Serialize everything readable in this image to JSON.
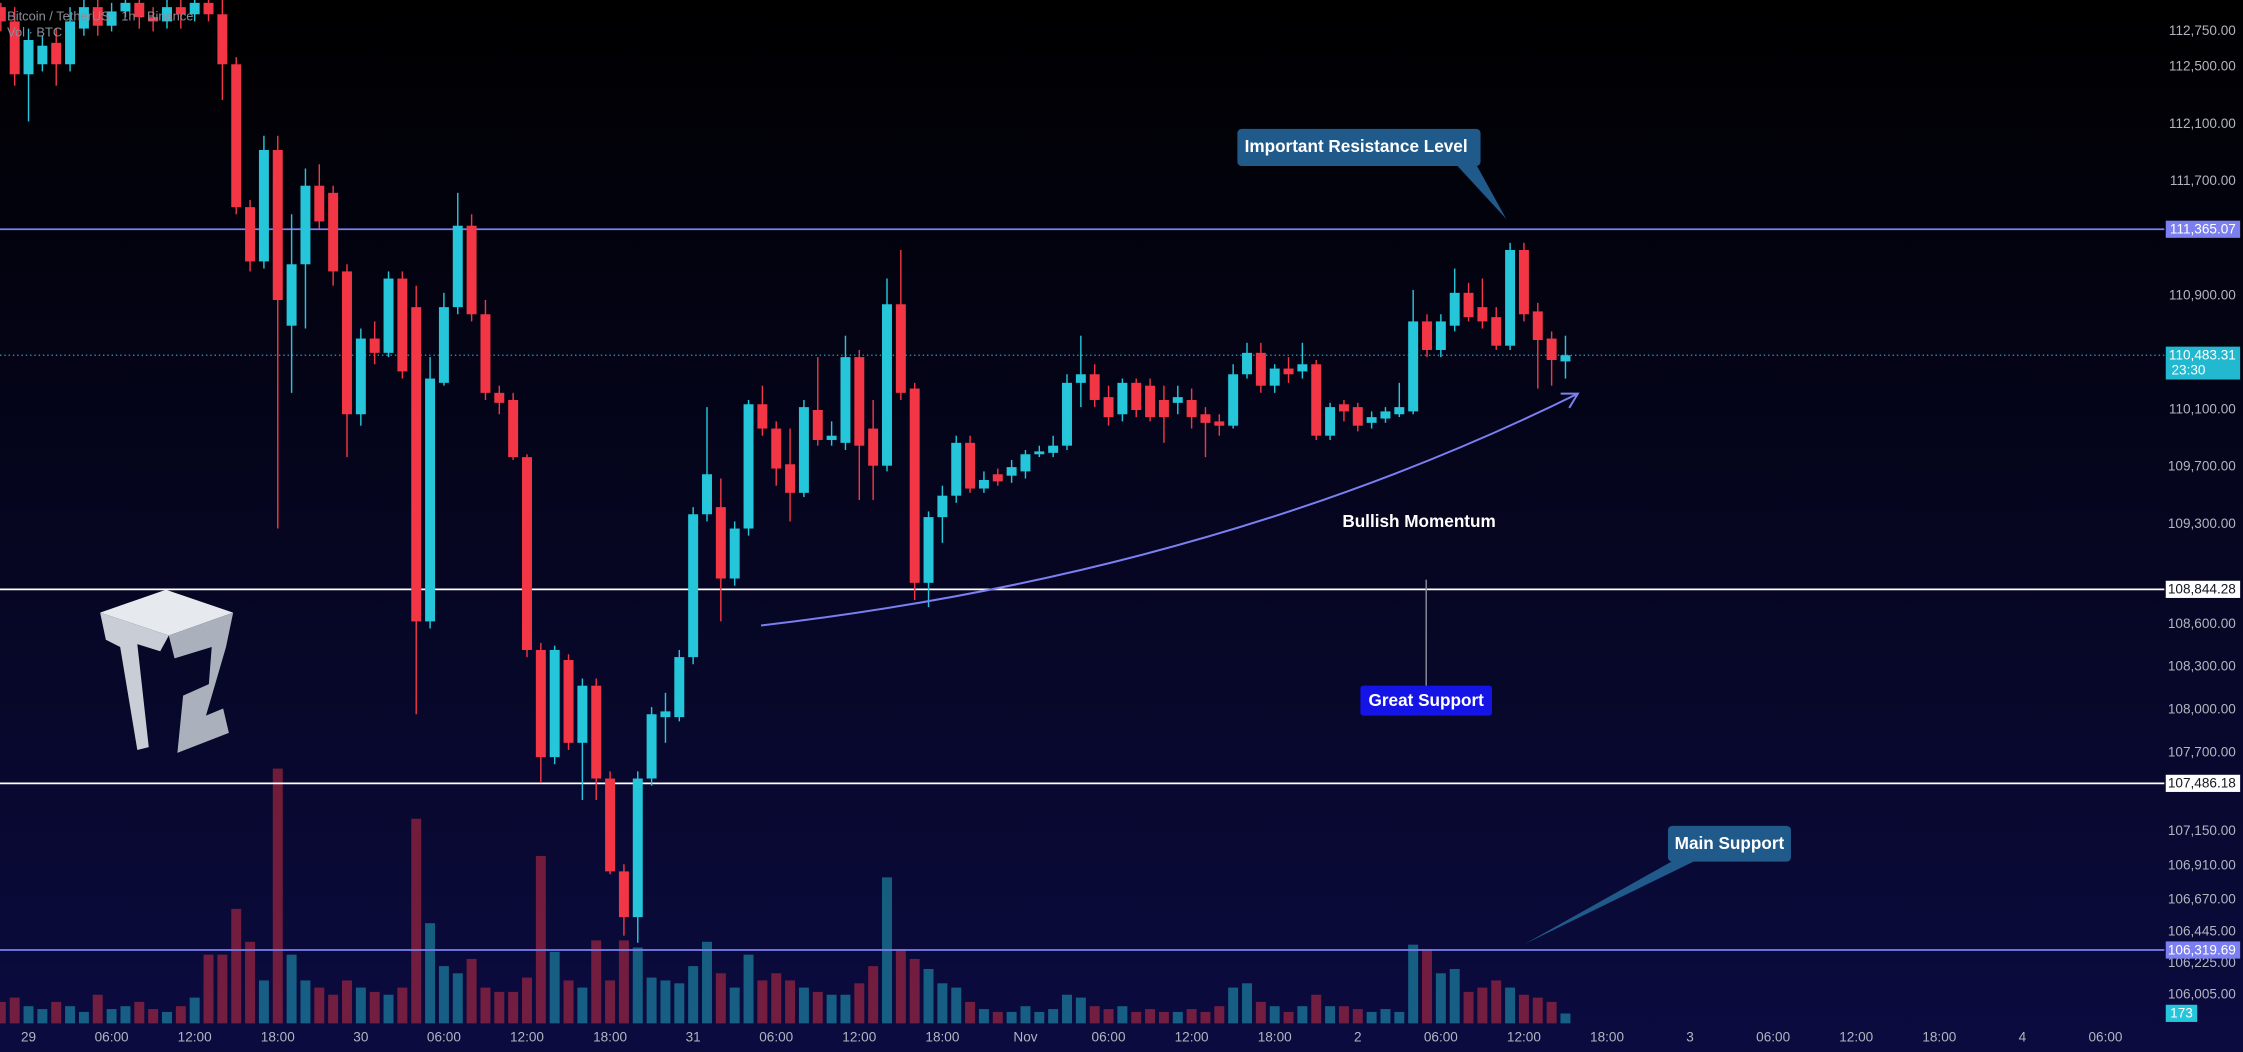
{
  "chart_data": {
    "type": "candlestick",
    "title": "Bitcoin / TetherUS · 1h · Binance",
    "subtitle": "Vol · BTC",
    "categories": [
      null,
      null,
      "29",
      null,
      null,
      null,
      null,
      null,
      "06:00",
      null,
      null,
      null,
      null,
      null,
      "12:00",
      null,
      null,
      null,
      null,
      null,
      "18:00",
      null,
      null,
      null,
      null,
      null,
      "30",
      null,
      null,
      null,
      null,
      null,
      "06:00",
      null,
      null,
      null,
      null,
      null,
      "12:00",
      null,
      null,
      null,
      null,
      null,
      "18:00",
      null,
      null,
      null,
      null,
      null,
      "31",
      null,
      null,
      null,
      null,
      null,
      "06:00",
      null,
      null,
      null,
      null,
      null,
      "12:00",
      null,
      null,
      null,
      null,
      null,
      "18:00",
      null,
      null,
      null,
      null,
      null,
      "Nov",
      null,
      null,
      null,
      null,
      null,
      "06:00",
      null,
      null,
      null,
      null,
      null,
      "12:00",
      null,
      null,
      null,
      null,
      null,
      "18:00",
      null,
      null,
      null,
      null,
      null,
      "2",
      null,
      null,
      null,
      null,
      null,
      "06:00",
      null,
      null,
      null,
      null,
      null,
      "12:00",
      null,
      null,
      null,
      null,
      null,
      "18:00",
      null,
      null,
      null,
      null,
      null,
      "3",
      null,
      null,
      null,
      null,
      null,
      "06:00",
      null,
      null,
      null,
      null,
      null,
      "12:00",
      null,
      null,
      null,
      null,
      null,
      "18:00",
      null,
      null,
      null,
      null,
      null,
      "4",
      null,
      null,
      null,
      null,
      null,
      "06:00",
      null,
      null,
      null
    ],
    "open": [
      112920,
      112820,
      112450,
      112520,
      112670,
      112520,
      112770,
      112920,
      112790,
      112890,
      112950,
      112850,
      112820,
      112920,
      112870,
      112950,
      112870,
      112520,
      111520,
      111140,
      111920,
      110690,
      111120,
      111670,
      111620,
      111070,
      110070,
      110600,
      110500,
      111020,
      110820,
      108620,
      110290,
      110820,
      111390,
      110770,
      110220,
      110170,
      109770,
      108420,
      107670,
      108350,
      107770,
      108170,
      107520,
      106870,
      106550,
      107520,
      107950,
      107950,
      108370,
      109370,
      109420,
      108920,
      109270,
      110140,
      109970,
      109720,
      109520,
      110100,
      109890,
      109870,
      110470,
      109970,
      109710,
      110840,
      110250,
      108890,
      109350,
      109500,
      109870,
      109550,
      109650,
      109640,
      109670,
      109790,
      109800,
      109850,
      110290,
      110350,
      110190,
      110070,
      110290,
      110270,
      110170,
      110150,
      110170,
      110070,
      110020,
      109990,
      110350,
      110500,
      110270,
      110390,
      110370,
      110420,
      109920,
      110140,
      110120,
      110010,
      110040,
      110070,
      110090,
      110720,
      110520,
      110690,
      110920,
      110820,
      110750,
      110550,
      111220,
      110790,
      110600,
      110440,
      null,
      null,
      null,
      null,
      null,
      null,
      null,
      null,
      null,
      null,
      null,
      null,
      null,
      null,
      null,
      null,
      null,
      null,
      null,
      null,
      null,
      null,
      null,
      null,
      null,
      null,
      null,
      null,
      null,
      null,
      null,
      null,
      null,
      null,
      null,
      null,
      null,
      null,
      null,
      null,
      null,
      null
    ],
    "high": [
      112950,
      112920,
      112770,
      112720,
      112770,
      112920,
      112970,
      112970,
      112950,
      112970,
      112970,
      112920,
      112970,
      112970,
      112970,
      112970,
      112970,
      112570,
      111570,
      112020,
      112020,
      111470,
      111790,
      111820,
      111670,
      111120,
      110670,
      110720,
      111070,
      111070,
      110970,
      110470,
      110920,
      111620,
      111470,
      110870,
      110270,
      110220,
      109790,
      108470,
      108450,
      108390,
      108220,
      108220,
      107570,
      106920,
      107570,
      108020,
      108120,
      108420,
      109420,
      110120,
      109620,
      109320,
      110170,
      110270,
      110020,
      109970,
      110170,
      110470,
      110020,
      110620,
      110520,
      110170,
      111020,
      111220,
      110290,
      109390,
      109570,
      109920,
      109920,
      109670,
      109690,
      109750,
      109820,
      109850,
      109920,
      110350,
      110620,
      110420,
      110270,
      110320,
      110320,
      110320,
      110270,
      110270,
      110250,
      110120,
      110070,
      110420,
      110570,
      110570,
      110420,
      110470,
      110570,
      110450,
      110150,
      110170,
      110150,
      110090,
      110120,
      110290,
      110940,
      110770,
      110770,
      111090,
      110990,
      111020,
      110820,
      111270,
      111270,
      110850,
      110650,
      110620,
      null,
      null,
      null,
      null,
      null,
      null,
      null,
      null,
      null,
      null,
      null,
      null,
      null,
      null,
      null,
      null,
      null,
      null,
      null,
      null,
      null,
      null,
      null,
      null,
      null,
      null,
      null,
      null,
      null,
      null,
      null,
      null,
      null,
      null,
      null,
      null,
      null,
      null,
      null,
      null,
      null,
      null
    ],
    "low": [
      112750,
      112370,
      112120,
      112470,
      112370,
      112470,
      112720,
      112720,
      112750,
      112850,
      112770,
      112750,
      112770,
      112770,
      112820,
      112820,
      112270,
      111470,
      111070,
      111090,
      109270,
      110220,
      110670,
      111370,
      110970,
      109770,
      109990,
      110420,
      110470,
      110320,
      107970,
      108570,
      110270,
      110770,
      110720,
      110170,
      110070,
      109750,
      108370,
      107490,
      107620,
      107720,
      107370,
      107370,
      106850,
      106420,
      106370,
      107470,
      107770,
      107920,
      108320,
      109320,
      108620,
      108870,
      109220,
      109920,
      109570,
      109320,
      109490,
      109850,
      109850,
      109820,
      109470,
      109470,
      109670,
      110170,
      108770,
      108720,
      109170,
      109450,
      109520,
      109520,
      109570,
      109590,
      109620,
      109770,
      109770,
      109820,
      110120,
      110120,
      109990,
      110020,
      110050,
      110020,
      109870,
      110070,
      109970,
      109770,
      109920,
      109970,
      110320,
      110220,
      110220,
      110290,
      110320,
      109890,
      109890,
      110020,
      109950,
      109970,
      110010,
      110050,
      110070,
      110470,
      110470,
      110650,
      110720,
      110670,
      110520,
      110520,
      110720,
      110250,
      110270,
      110320,
      null,
      null,
      null,
      null,
      null,
      null,
      null,
      null,
      null,
      null,
      null,
      null,
      null,
      null,
      null,
      null,
      null,
      null,
      null,
      null,
      null,
      null,
      null,
      null,
      null,
      null,
      null,
      null,
      null,
      null,
      null,
      null,
      null,
      null,
      null,
      null,
      null,
      null,
      null,
      null,
      null,
      null
    ],
    "close": [
      112820,
      112450,
      112690,
      112650,
      112520,
      112820,
      112920,
      112790,
      112890,
      112950,
      112850,
      112820,
      112920,
      112870,
      112950,
      112870,
      112520,
      111520,
      111140,
      111920,
      110870,
      111120,
      111670,
      111420,
      111070,
      110070,
      110600,
      110500,
      111020,
      110370,
      108620,
      110320,
      110820,
      111390,
      110770,
      110220,
      110150,
      109770,
      108420,
      107670,
      108420,
      107770,
      108170,
      107520,
      106870,
      106550,
      107520,
      107970,
      107990,
      108370,
      109370,
      109650,
      108920,
      109270,
      110140,
      109970,
      109690,
      109520,
      110120,
      109890,
      109920,
      110470,
      109850,
      109710,
      110840,
      110220,
      108890,
      109350,
      109500,
      109870,
      109550,
      109610,
      109600,
      109700,
      109790,
      109810,
      109850,
      110290,
      110350,
      110170,
      110050,
      110290,
      110100,
      110050,
      110050,
      110190,
      110050,
      110010,
      109990,
      110350,
      110500,
      110270,
      110390,
      110350,
      110420,
      109920,
      110120,
      110090,
      109990,
      110050,
      110090,
      110120,
      110720,
      110520,
      110720,
      110920,
      110750,
      110720,
      110550,
      111220,
      110770,
      110590,
      110450,
      110483.31,
      null,
      null,
      null,
      null,
      null,
      null,
      null,
      null,
      null,
      null,
      null,
      null,
      null,
      null,
      null,
      null,
      null,
      null,
      null,
      null,
      null,
      null,
      null,
      null,
      null,
      null,
      null,
      null,
      null,
      null,
      null,
      null,
      null,
      null,
      null,
      null,
      null,
      null,
      null,
      null,
      null,
      null
    ],
    "volume": [
      375,
      450,
      300,
      250,
      375,
      300,
      200,
      500,
      250,
      300,
      375,
      250,
      200,
      300,
      450,
      1200,
      1200,
      2000,
      1425,
      750,
      4450,
      1200,
      750,
      625,
      500,
      750,
      625,
      550,
      500,
      625,
      3575,
      1750,
      1000,
      875,
      1125,
      625,
      550,
      550,
      800,
      2925,
      1250,
      750,
      625,
      1450,
      750,
      1450,
      1325,
      800,
      750,
      700,
      1000,
      1425,
      875,
      625,
      1200,
      750,
      875,
      750,
      625,
      550,
      500,
      500,
      700,
      1000,
      2550,
      1300,
      1125,
      950,
      700,
      625,
      375,
      250,
      200,
      200,
      300,
      200,
      250,
      500,
      450,
      300,
      250,
      300,
      200,
      250,
      200,
      200,
      250,
      200,
      300,
      625,
      700,
      375,
      300,
      200,
      300,
      500,
      300,
      300,
      250,
      200,
      250,
      200,
      1375,
      1300,
      875,
      950,
      550,
      625,
      750,
      625,
      500,
      450,
      375,
      173,
      null,
      null,
      null,
      null,
      null,
      null,
      null,
      null,
      null,
      null,
      null,
      null,
      null,
      null,
      null,
      null,
      null,
      null,
      null,
      null,
      null,
      null,
      null,
      null,
      null,
      null,
      null,
      null,
      null,
      null,
      null,
      null,
      null,
      null,
      null,
      null,
      null,
      null,
      null,
      null,
      null,
      null
    ],
    "up_color": "#26c6da",
    "down_color": "#f23645",
    "ylim": [
      105806,
      112970
    ],
    "yticks": [
      {
        "value": 112750,
        "label": "112,750.00"
      },
      {
        "value": 112500,
        "label": "112,500.00"
      },
      {
        "value": 112100,
        "label": "112,100.00"
      },
      {
        "value": 111700,
        "label": "111,700.00"
      },
      {
        "value": 110900,
        "label": "110,900.00"
      },
      {
        "value": 110100,
        "label": "110,100.00"
      },
      {
        "value": 109700,
        "label": "109,700.00"
      },
      {
        "value": 109300,
        "label": "109,300.00"
      },
      {
        "value": 108600,
        "label": "108,600.00"
      },
      {
        "value": 108300,
        "label": "108,300.00"
      },
      {
        "value": 108000,
        "label": "108,000.00"
      },
      {
        "value": 107700,
        "label": "107,700.00"
      },
      {
        "value": 107150,
        "label": "107,150.00"
      },
      {
        "value": 106910,
        "label": "106,910.00"
      },
      {
        "value": 106670,
        "label": "106,670.00"
      },
      {
        "value": 106445,
        "label": "106,445.00"
      },
      {
        "value": 106225,
        "label": "106,225.00"
      },
      {
        "value": 106005,
        "label": "106,005.00"
      }
    ],
    "volume_ylim": [
      0,
      4500
    ],
    "horizontal_lines": [
      {
        "value": 111365.07,
        "label": "111,365.07",
        "color": "#7b7ff0"
      },
      {
        "value": 108844.28,
        "label": "108,844.28",
        "color": "#ffffff"
      },
      {
        "value": 107486.18,
        "label": "107,486.18",
        "color": "#ffffff"
      },
      {
        "value": 106319.69,
        "label": "106,319.69",
        "color": "#7b7ff0"
      }
    ],
    "last_price": {
      "value": 110483.31,
      "label": "110,483.31",
      "countdown": "23:30",
      "color": "#22b8cf"
    },
    "annotations": [
      "Important Resistance Level",
      "Bullish Momentum",
      "Great Support",
      "Main Support"
    ]
  }
}
